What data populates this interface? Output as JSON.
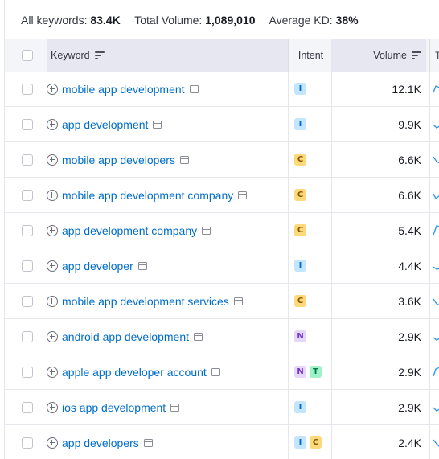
{
  "summary": {
    "all_keywords_label": "All keywords:",
    "all_keywords_value": "83.4K",
    "total_volume_label": "Total Volume:",
    "total_volume_value": "1,089,010",
    "average_kd_label": "Average KD:",
    "average_kd_value": "38%"
  },
  "table": {
    "headers": {
      "keyword": "Keyword",
      "intent": "Intent",
      "volume": "Volume",
      "extra": "T"
    },
    "rows": [
      {
        "keyword": "mobile app development",
        "intents": [
          "I"
        ],
        "volume": "12.1K"
      },
      {
        "keyword": "app development",
        "intents": [
          "I"
        ],
        "volume": "9.9K"
      },
      {
        "keyword": "mobile app developers",
        "intents": [
          "C"
        ],
        "volume": "6.6K"
      },
      {
        "keyword": "mobile app development company",
        "intents": [
          "C"
        ],
        "volume": "6.6K"
      },
      {
        "keyword": "app development company",
        "intents": [
          "C"
        ],
        "volume": "5.4K"
      },
      {
        "keyword": "app developer",
        "intents": [
          "I"
        ],
        "volume": "4.4K"
      },
      {
        "keyword": "mobile app development services",
        "intents": [
          "C"
        ],
        "volume": "3.6K"
      },
      {
        "keyword": "android app development",
        "intents": [
          "N"
        ],
        "volume": "2.9K"
      },
      {
        "keyword": "apple app developer account",
        "intents": [
          "N",
          "T"
        ],
        "volume": "2.9K"
      },
      {
        "keyword": "ios app development",
        "intents": [
          "I"
        ],
        "volume": "2.9K"
      },
      {
        "keyword": "app developers",
        "intents": [
          "I",
          "C"
        ],
        "volume": "2.4K"
      }
    ]
  },
  "colors": {
    "link": "#006dca",
    "intent_I": "#c4e5fe",
    "intent_C": "#fcd97a",
    "intent_N": "#e4d7fa",
    "intent_T": "#9ef2c9"
  },
  "icons": [
    "add-keyword-icon",
    "serp-features-icon",
    "sort-icon",
    "trend-sparkline-icon"
  ]
}
